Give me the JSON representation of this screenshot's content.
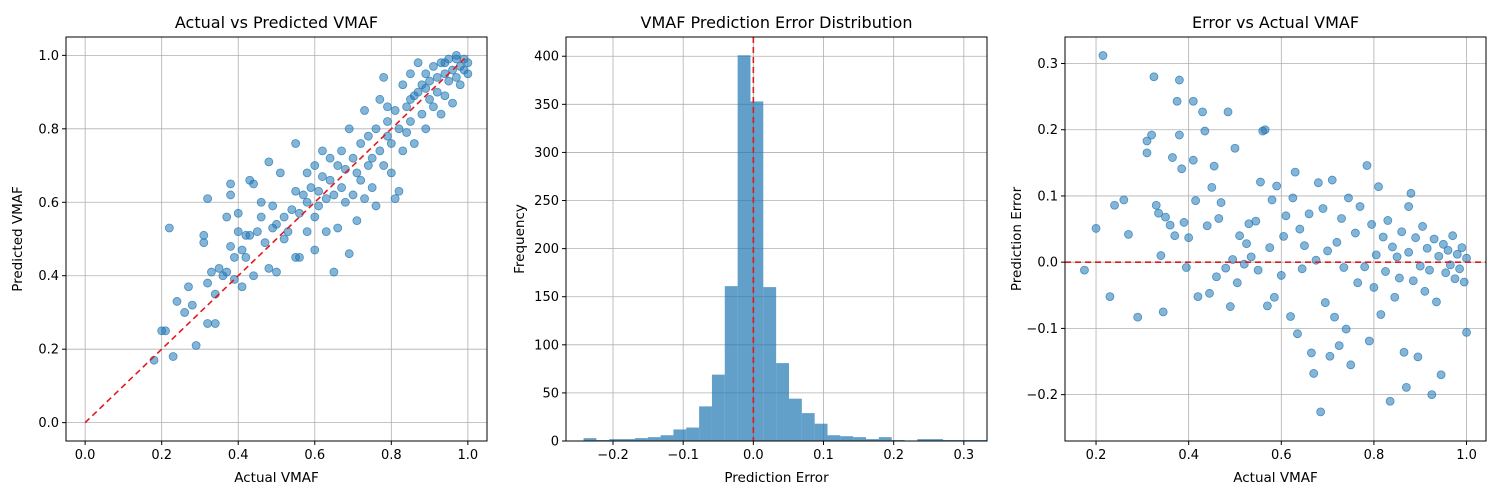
{
  "colors": {
    "marker": "#1f77b4",
    "reference_line": "#e31a1c",
    "grid": "#b0b0b0",
    "axes": "#000000"
  },
  "chart_data": [
    {
      "type": "scatter",
      "title": "Actual vs Predicted VMAF",
      "xlabel": "Actual VMAF",
      "ylabel": "Predicted VMAF",
      "xlim": [
        -0.05,
        1.05
      ],
      "ylim": [
        -0.05,
        1.05
      ],
      "xticks": [
        0.0,
        0.2,
        0.4,
        0.6,
        0.8,
        1.0
      ],
      "yticks": [
        0.0,
        0.2,
        0.4,
        0.6,
        0.8,
        1.0
      ],
      "xtick_labels": [
        "0.0",
        "0.2",
        "0.4",
        "0.6",
        "0.8",
        "1.0"
      ],
      "ytick_labels": [
        "0.0",
        "0.2",
        "0.4",
        "0.6",
        "0.8",
        "1.0"
      ],
      "grid": true,
      "reference_line": {
        "style": "dashed",
        "from": [
          0,
          0
        ],
        "to": [
          1,
          1
        ]
      },
      "points": [
        [
          0.18,
          0.17
        ],
        [
          0.2,
          0.25
        ],
        [
          0.21,
          0.25
        ],
        [
          0.22,
          0.53
        ],
        [
          0.23,
          0.18
        ],
        [
          0.24,
          0.33
        ],
        [
          0.26,
          0.3
        ],
        [
          0.27,
          0.37
        ],
        [
          0.28,
          0.32
        ],
        [
          0.29,
          0.21
        ],
        [
          0.31,
          0.49
        ],
        [
          0.31,
          0.51
        ],
        [
          0.32,
          0.27
        ],
        [
          0.32,
          0.61
        ],
        [
          0.32,
          0.38
        ],
        [
          0.33,
          0.41
        ],
        [
          0.34,
          0.27
        ],
        [
          0.34,
          0.35
        ],
        [
          0.35,
          0.42
        ],
        [
          0.36,
          0.4
        ],
        [
          0.37,
          0.41
        ],
        [
          0.37,
          0.56
        ],
        [
          0.38,
          0.65
        ],
        [
          0.38,
          0.62
        ],
        [
          0.38,
          0.48
        ],
        [
          0.39,
          0.45
        ],
        [
          0.39,
          0.39
        ],
        [
          0.4,
          0.52
        ],
        [
          0.4,
          0.57
        ],
        [
          0.41,
          0.47
        ],
        [
          0.41,
          0.37
        ],
        [
          0.42,
          0.51
        ],
        [
          0.42,
          0.45
        ],
        [
          0.43,
          0.66
        ],
        [
          0.43,
          0.51
        ],
        [
          0.44,
          0.65
        ],
        [
          0.44,
          0.4
        ],
        [
          0.45,
          0.52
        ],
        [
          0.46,
          0.56
        ],
        [
          0.46,
          0.6
        ],
        [
          0.47,
          0.49
        ],
        [
          0.48,
          0.42
        ],
        [
          0.48,
          0.71
        ],
        [
          0.49,
          0.53
        ],
        [
          0.49,
          0.59
        ],
        [
          0.5,
          0.41
        ],
        [
          0.5,
          0.54
        ],
        [
          0.51,
          0.68
        ],
        [
          0.52,
          0.5
        ],
        [
          0.52,
          0.56
        ],
        [
          0.53,
          0.52
        ],
        [
          0.54,
          0.58
        ],
        [
          0.55,
          0.45
        ],
        [
          0.55,
          0.63
        ],
        [
          0.55,
          0.76
        ],
        [
          0.56,
          0.57
        ],
        [
          0.56,
          0.45
        ],
        [
          0.57,
          0.62
        ],
        [
          0.58,
          0.6
        ],
        [
          0.58,
          0.68
        ],
        [
          0.58,
          0.52
        ],
        [
          0.59,
          0.64
        ],
        [
          0.6,
          0.56
        ],
        [
          0.6,
          0.47
        ],
        [
          0.6,
          0.7
        ],
        [
          0.61,
          0.63
        ],
        [
          0.61,
          0.59
        ],
        [
          0.62,
          0.67
        ],
        [
          0.62,
          0.74
        ],
        [
          0.63,
          0.61
        ],
        [
          0.63,
          0.52
        ],
        [
          0.64,
          0.66
        ],
        [
          0.64,
          0.72
        ],
        [
          0.65,
          0.41
        ],
        [
          0.65,
          0.62
        ],
        [
          0.66,
          0.7
        ],
        [
          0.66,
          0.53
        ],
        [
          0.67,
          0.74
        ],
        [
          0.67,
          0.64
        ],
        [
          0.68,
          0.6
        ],
        [
          0.68,
          0.69
        ],
        [
          0.69,
          0.46
        ],
        [
          0.69,
          0.8
        ],
        [
          0.7,
          0.62
        ],
        [
          0.7,
          0.72
        ],
        [
          0.71,
          0.68
        ],
        [
          0.71,
          0.55
        ],
        [
          0.72,
          0.76
        ],
        [
          0.72,
          0.66
        ],
        [
          0.73,
          0.61
        ],
        [
          0.73,
          0.85
        ],
        [
          0.74,
          0.7
        ],
        [
          0.74,
          0.78
        ],
        [
          0.75,
          0.64
        ],
        [
          0.75,
          0.72
        ],
        [
          0.76,
          0.59
        ],
        [
          0.76,
          0.8
        ],
        [
          0.77,
          0.74
        ],
        [
          0.77,
          0.88
        ],
        [
          0.78,
          0.7
        ],
        [
          0.78,
          0.94
        ],
        [
          0.79,
          0.78
        ],
        [
          0.79,
          0.82
        ],
        [
          0.8,
          0.68
        ],
        [
          0.8,
          0.76
        ],
        [
          0.81,
          0.61
        ],
        [
          0.81,
          0.85
        ],
        [
          0.82,
          0.63
        ],
        [
          0.82,
          0.8
        ],
        [
          0.83,
          0.92
        ],
        [
          0.83,
          0.74
        ],
        [
          0.84,
          0.86
        ],
        [
          0.84,
          0.79
        ],
        [
          0.85,
          0.95
        ],
        [
          0.85,
          0.82
        ],
        [
          0.86,
          0.89
        ],
        [
          0.86,
          0.76
        ],
        [
          0.87,
          0.9
        ],
        [
          0.87,
          0.98
        ],
        [
          0.88,
          0.84
        ],
        [
          0.88,
          0.92
        ],
        [
          0.89,
          0.8
        ],
        [
          0.89,
          0.95
        ],
        [
          0.9,
          0.88
        ],
        [
          0.9,
          0.93
        ],
        [
          0.91,
          0.97
        ],
        [
          0.91,
          0.86
        ],
        [
          0.92,
          0.94
        ],
        [
          0.92,
          0.9
        ],
        [
          0.93,
          0.98
        ],
        [
          0.93,
          0.84
        ],
        [
          0.94,
          0.95
        ],
        [
          0.94,
          0.89
        ],
        [
          0.95,
          0.99
        ],
        [
          0.95,
          0.93
        ],
        [
          0.96,
          0.96
        ],
        [
          0.96,
          0.87
        ],
        [
          0.97,
          0.99
        ],
        [
          0.97,
          0.94
        ],
        [
          0.98,
          0.97
        ],
        [
          0.98,
          0.92
        ],
        [
          0.99,
          0.99
        ],
        [
          0.99,
          0.96
        ],
        [
          1.0,
          0.98
        ],
        [
          1.0,
          0.95
        ],
        [
          0.97,
          1.0
        ],
        [
          0.94,
          0.98
        ],
        [
          0.89,
          0.91
        ],
        [
          0.85,
          0.88
        ],
        [
          0.79,
          0.86
        ]
      ]
    },
    {
      "type": "bar",
      "title": "VMAF Prediction Error Distribution",
      "xlabel": "Prediction Error",
      "ylabel": "Frequency",
      "xlim": [
        -0.267,
        0.333
      ],
      "ylim": [
        0,
        420
      ],
      "xticks": [
        -0.2,
        -0.1,
        0.0,
        0.1,
        0.2,
        0.3
      ],
      "yticks": [
        0,
        50,
        100,
        150,
        200,
        250,
        300,
        350,
        400
      ],
      "xtick_labels": [
        "−0.2",
        "−0.1",
        "0.0",
        "0.1",
        "0.2",
        "0.3"
      ],
      "ytick_labels": [
        "0",
        "50",
        "100",
        "150",
        "200",
        "250",
        "300",
        "350",
        "400"
      ],
      "grid": true,
      "reference_line": {
        "style": "dashed",
        "x": 0
      },
      "bin_start": -0.242,
      "bin_width": 0.0183,
      "values": [
        3,
        1,
        2,
        2,
        3,
        4,
        6,
        12,
        14,
        36,
        69,
        161,
        401,
        353,
        160,
        81,
        44,
        29,
        18,
        6,
        5,
        4,
        2,
        4,
        1,
        0,
        2,
        2,
        1,
        1,
        1,
        1
      ]
    },
    {
      "type": "scatter",
      "title": "Error vs Actual VMAF",
      "xlabel": "Actual VMAF",
      "ylabel": "Prediction Error",
      "xlim": [
        0.133,
        1.042
      ],
      "ylim": [
        -0.27,
        0.34
      ],
      "xticks": [
        0.2,
        0.4,
        0.6,
        0.8,
        1.0
      ],
      "yticks": [
        -0.2,
        -0.1,
        0.0,
        0.1,
        0.2,
        0.3
      ],
      "xtick_labels": [
        "0.2",
        "0.4",
        "0.6",
        "0.8",
        "1.0"
      ],
      "ytick_labels": [
        "−0.2",
        "−0.1",
        "0.0",
        "0.1",
        "0.2",
        "0.3"
      ],
      "grid": true,
      "reference_line": {
        "style": "dashed",
        "y": 0
      },
      "points": [
        [
          0.175,
          -0.012
        ],
        [
          0.2,
          0.051
        ],
        [
          0.215,
          0.312
        ],
        [
          0.23,
          -0.052
        ],
        [
          0.24,
          0.086
        ],
        [
          0.26,
          0.094
        ],
        [
          0.27,
          0.042
        ],
        [
          0.29,
          -0.083
        ],
        [
          0.31,
          0.165
        ],
        [
          0.31,
          0.183
        ],
        [
          0.32,
          0.192
        ],
        [
          0.325,
          0.28
        ],
        [
          0.33,
          0.086
        ],
        [
          0.335,
          0.074
        ],
        [
          0.34,
          0.01
        ],
        [
          0.345,
          -0.075
        ],
        [
          0.35,
          0.068
        ],
        [
          0.36,
          0.056
        ],
        [
          0.365,
          0.158
        ],
        [
          0.37,
          0.04
        ],
        [
          0.375,
          0.243
        ],
        [
          0.38,
          0.275
        ],
        [
          0.38,
          0.192
        ],
        [
          0.385,
          0.141
        ],
        [
          0.39,
          0.06
        ],
        [
          0.395,
          -0.008
        ],
        [
          0.4,
          0.037
        ],
        [
          0.41,
          0.243
        ],
        [
          0.41,
          0.154
        ],
        [
          0.415,
          0.093
        ],
        [
          0.42,
          -0.052
        ],
        [
          0.43,
          0.227
        ],
        [
          0.435,
          0.198
        ],
        [
          0.44,
          0.055
        ],
        [
          0.445,
          -0.047
        ],
        [
          0.45,
          0.113
        ],
        [
          0.455,
          0.145
        ],
        [
          0.46,
          -0.022
        ],
        [
          0.465,
          0.066
        ],
        [
          0.47,
          0.09
        ],
        [
          0.48,
          -0.009
        ],
        [
          0.485,
          0.227
        ],
        [
          0.49,
          -0.067
        ],
        [
          0.495,
          0.004
        ],
        [
          0.5,
          0.172
        ],
        [
          0.505,
          -0.031
        ],
        [
          0.51,
          0.04
        ],
        [
          0.52,
          -0.003
        ],
        [
          0.525,
          0.028
        ],
        [
          0.53,
          0.058
        ],
        [
          0.535,
          0.008
        ],
        [
          0.545,
          0.062
        ],
        [
          0.55,
          -0.012
        ],
        [
          0.555,
          0.121
        ],
        [
          0.56,
          0.198
        ],
        [
          0.565,
          0.2
        ],
        [
          0.57,
          -0.066
        ],
        [
          0.575,
          0.022
        ],
        [
          0.58,
          0.094
        ],
        [
          0.585,
          -0.053
        ],
        [
          0.59,
          0.115
        ],
        [
          0.6,
          -0.02
        ],
        [
          0.605,
          0.039
        ],
        [
          0.61,
          0.07
        ],
        [
          0.62,
          -0.082
        ],
        [
          0.625,
          0.097
        ],
        [
          0.63,
          0.136
        ],
        [
          0.635,
          -0.108
        ],
        [
          0.64,
          0.05
        ],
        [
          0.645,
          -0.01
        ],
        [
          0.65,
          0.025
        ],
        [
          0.66,
          0.073
        ],
        [
          0.665,
          -0.137
        ],
        [
          0.67,
          -0.168
        ],
        [
          0.675,
          0.003
        ],
        [
          0.68,
          0.12
        ],
        [
          0.685,
          -0.226
        ],
        [
          0.69,
          0.081
        ],
        [
          0.695,
          -0.061
        ],
        [
          0.7,
          0.017
        ],
        [
          0.705,
          -0.142
        ],
        [
          0.71,
          0.124
        ],
        [
          0.715,
          -0.083
        ],
        [
          0.72,
          0.03
        ],
        [
          0.725,
          -0.126
        ],
        [
          0.73,
          0.066
        ],
        [
          0.735,
          -0.008
        ],
        [
          0.74,
          -0.101
        ],
        [
          0.745,
          0.097
        ],
        [
          0.75,
          -0.155
        ],
        [
          0.76,
          0.044
        ],
        [
          0.765,
          -0.031
        ],
        [
          0.77,
          0.084
        ],
        [
          0.78,
          -0.007
        ],
        [
          0.785,
          0.146
        ],
        [
          0.79,
          -0.119
        ],
        [
          0.795,
          0.057
        ],
        [
          0.8,
          -0.038
        ],
        [
          0.805,
          0.011
        ],
        [
          0.81,
          0.114
        ],
        [
          0.815,
          -0.079
        ],
        [
          0.82,
          0.038
        ],
        [
          0.825,
          -0.014
        ],
        [
          0.83,
          0.063
        ],
        [
          0.835,
          -0.21
        ],
        [
          0.84,
          0.023
        ],
        [
          0.845,
          -0.053
        ],
        [
          0.85,
          0.008
        ],
        [
          0.855,
          -0.024
        ],
        [
          0.86,
          0.046
        ],
        [
          0.865,
          -0.136
        ],
        [
          0.87,
          -0.189
        ],
        [
          0.875,
          0.015
        ],
        [
          0.88,
          0.104
        ],
        [
          0.885,
          -0.028
        ],
        [
          0.89,
          0.037
        ],
        [
          0.895,
          -0.143
        ],
        [
          0.9,
          -0.006
        ],
        [
          0.905,
          0.054
        ],
        [
          0.91,
          -0.044
        ],
        [
          0.915,
          0.021
        ],
        [
          0.92,
          -0.012
        ],
        [
          0.925,
          -0.2
        ],
        [
          0.93,
          0.035
        ],
        [
          0.935,
          -0.06
        ],
        [
          0.94,
          0.009
        ],
        [
          0.945,
          -0.17
        ],
        [
          0.95,
          0.027
        ],
        [
          0.955,
          -0.016
        ],
        [
          0.96,
          0.018
        ],
        [
          0.965,
          -0.004
        ],
        [
          0.97,
          0.04
        ],
        [
          0.975,
          -0.025
        ],
        [
          0.98,
          0.012
        ],
        [
          0.985,
          -0.01
        ],
        [
          0.99,
          0.022
        ],
        [
          0.995,
          -0.03
        ],
        [
          1.0,
          0.006
        ],
        [
          1.0,
          -0.106
        ],
        [
          0.875,
          0.084
        ]
      ]
    }
  ]
}
